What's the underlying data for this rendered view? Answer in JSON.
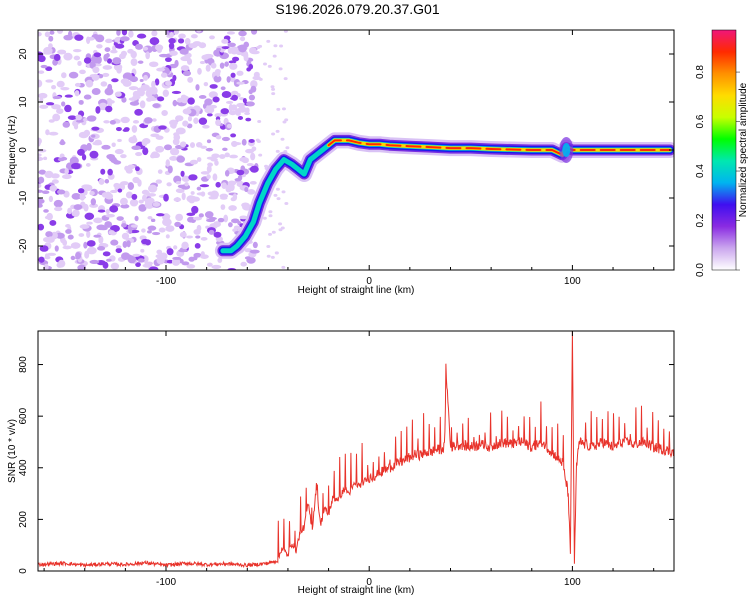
{
  "title": "S196.2026.079.20.37.G01",
  "colors": {
    "snr_line": "#e8332b",
    "axis": "#000000",
    "background": "#ffffff"
  },
  "chart_data": [
    {
      "type": "heatmap",
      "name": "spectrogram",
      "title": "S196.2026.079.20.37.G01",
      "xlabel": "Height of straight line (km)",
      "ylabel": "Frequency (Hz)",
      "xlim": [
        -163,
        150
      ],
      "ylim": [
        -25,
        25
      ],
      "x_ticks": [
        -100,
        0,
        100
      ],
      "y_ticks": [
        -20,
        -10,
        0,
        10,
        20
      ],
      "x_tick_labels": [
        "-100",
        "0",
        "100"
      ],
      "y_tick_labels": [
        "-20",
        "-10",
        "0",
        "10",
        "20"
      ],
      "noise_region_x": [
        -163,
        -55
      ],
      "track": {
        "x": [
          -72,
          -68,
          -65,
          -61,
          -57,
          -54,
          -50,
          -46,
          -42,
          -38,
          -35,
          -32,
          -29,
          -26,
          -23,
          -20,
          -17,
          -14,
          -10,
          -5,
          0,
          5,
          10,
          20,
          30,
          40,
          50,
          60,
          70,
          80,
          90,
          95,
          97,
          100,
          103,
          110,
          120,
          130,
          140,
          148
        ],
        "y": [
          -21,
          -21,
          -20,
          -18,
          -15,
          -11,
          -7,
          -4,
          -2,
          -3,
          -4,
          -5,
          -2,
          -1,
          0,
          1,
          2,
          2,
          2,
          1.5,
          1.2,
          1.2,
          1,
          0.8,
          0.6,
          0.4,
          0.4,
          0.2,
          0.1,
          0,
          0,
          -1,
          0.5,
          0,
          0,
          0,
          0,
          0,
          0,
          0
        ]
      },
      "colorbar": {
        "label": "Normalized spectral amplitude",
        "ticks": [
          0.0,
          0.2,
          0.4,
          0.6,
          0.8
        ],
        "tick_labels": [
          "0.0",
          "0.2",
          "0.4",
          "0.6",
          "0.8"
        ],
        "range": [
          0,
          0.97
        ],
        "colors": [
          "#ffffff",
          "#cba7ee",
          "#8a2be2",
          "#3f0ff0",
          "#00b4f0",
          "#00e8b0",
          "#00ff00",
          "#c8ff00",
          "#ffdc00",
          "#ff9000",
          "#ff2a00",
          "#f0167a"
        ]
      }
    },
    {
      "type": "line",
      "name": "snr",
      "xlabel": "Height of straight line (km)",
      "ylabel": "SNR (10 * v/v)",
      "xlim": [
        -163,
        150
      ],
      "ylim": [
        0,
        930
      ],
      "x_ticks": [
        -100,
        0,
        100
      ],
      "y_ticks": [
        0,
        200,
        400,
        600,
        800
      ],
      "x_tick_labels": [
        "-100",
        "0",
        "100"
      ],
      "y_tick_labels": [
        "0",
        "200",
        "400",
        "600",
        "800"
      ],
      "series": [
        {
          "name": "SNR",
          "x": [
            -163,
            -150,
            -140,
            -130,
            -120,
            -110,
            -100,
            -90,
            -80,
            -70,
            -60,
            -50,
            -45,
            -43,
            -40,
            -38,
            -36,
            -34,
            -32,
            -30,
            -28,
            -26,
            -24,
            -22,
            -20,
            -18,
            -15,
            -12,
            -10,
            -7,
            -5,
            -2,
            0,
            3,
            5,
            8,
            10,
            12,
            15,
            18,
            20,
            22,
            25,
            28,
            30,
            33,
            35,
            37,
            38,
            40,
            45,
            50,
            55,
            60,
            65,
            70,
            75,
            80,
            85,
            90,
            95,
            98,
            99,
            100,
            101,
            102,
            103,
            104,
            106,
            110,
            115,
            120,
            125,
            130,
            135,
            140,
            145,
            150
          ],
          "values": [
            25,
            30,
            22,
            28,
            25,
            32,
            22,
            30,
            25,
            28,
            22,
            30,
            40,
            90,
            60,
            110,
            80,
            150,
            170,
            260,
            160,
            330,
            180,
            240,
            220,
            280,
            280,
            320,
            300,
            340,
            330,
            350,
            360,
            370,
            380,
            390,
            400,
            410,
            420,
            430,
            440,
            450,
            450,
            460,
            460,
            470,
            470,
            480,
            760,
            480,
            490,
            480,
            490,
            480,
            500,
            490,
            500,
            480,
            500,
            460,
            420,
            300,
            50,
            930,
            40,
            400,
            480,
            500,
            490,
            480,
            500,
            480,
            500,
            490,
            500,
            480,
            470,
            460
          ]
        }
      ]
    }
  ]
}
